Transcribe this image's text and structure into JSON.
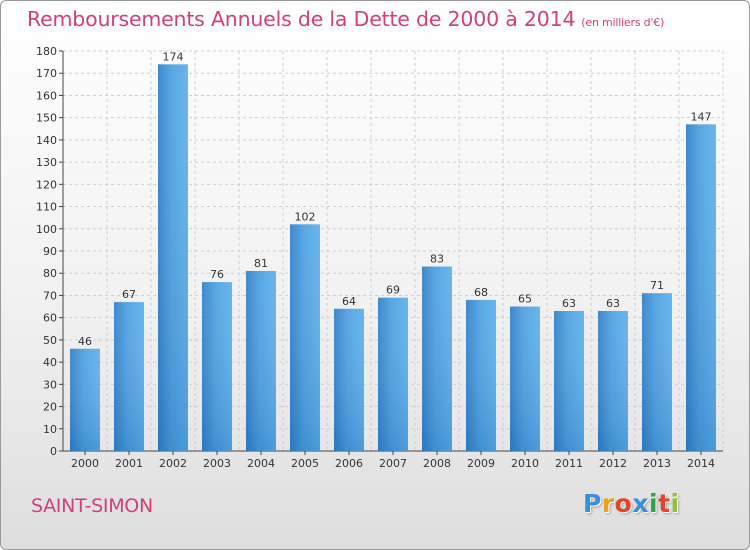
{
  "chart_data": {
    "type": "bar",
    "title": "Remboursements Annuels de la Dette de 2000 à 2014",
    "subtitle": "(en milliers d'€)",
    "categories": [
      "2000",
      "2001",
      "2002",
      "2003",
      "2004",
      "2005",
      "2006",
      "2007",
      "2008",
      "2009",
      "2010",
      "2011",
      "2012",
      "2013",
      "2014"
    ],
    "values": [
      46,
      67,
      174,
      76,
      81,
      102,
      64,
      69,
      83,
      68,
      65,
      63,
      63,
      71,
      147
    ],
    "ylim": [
      0,
      180
    ],
    "yticks": [
      0,
      10,
      20,
      30,
      40,
      50,
      60,
      70,
      80,
      90,
      100,
      110,
      120,
      130,
      140,
      150,
      160,
      170,
      180
    ],
    "grid": true,
    "bar_color": "#4a9fe0",
    "data_labels": true
  },
  "footer": {
    "town": "SAINT-SIMON",
    "logo": "Proxiti",
    "logo_colors": [
      "#3b8fd9",
      "#e8a21c",
      "#e2452c",
      "#3b8fd9",
      "#2aa64a",
      "#e2452c",
      "#8fc23c"
    ]
  },
  "colors": {
    "title": "#d2407a",
    "grid": "#cfcfcf",
    "axis": "#444444"
  }
}
